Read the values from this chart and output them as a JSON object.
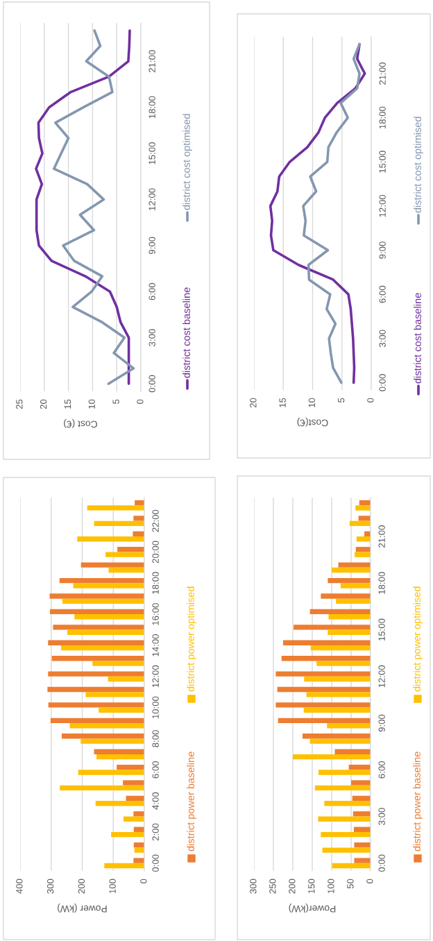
{
  "chart_data": [
    {
      "type": "line",
      "orientation": "horizontal",
      "xlabel": "Cost (€)",
      "xlim": [
        25,
        0
      ],
      "xticks": [
        25,
        20,
        15,
        10,
        5,
        0
      ],
      "grid": "x",
      "legend": "right",
      "marker": "none",
      "categories": [
        null,
        null,
        "21:00",
        null,
        null,
        "18:00",
        null,
        null,
        "15:00",
        null,
        null,
        "12:00",
        null,
        null,
        "9:00",
        null,
        null,
        "6:00",
        null,
        null,
        "3:00",
        null,
        null,
        "0:00"
      ],
      "series": [
        {
          "name": "district cost baseline",
          "color": "#7030a0",
          "values": [
            2.3,
            2.4,
            2.6,
            6.6,
            14.5,
            19,
            21.2,
            21.1,
            20.4,
            21.7,
            20.5,
            21.6,
            21.6,
            21.6,
            21.1,
            18.5,
            11.5,
            6.4,
            5,
            4.2,
            2.5,
            2.5,
            2.5,
            2.5
          ]
        },
        {
          "name": "district cost optimised",
          "color": "#8497b0",
          "values": [
            9.6,
            8.4,
            11.3,
            6.6,
            5.9,
            11.9,
            17.7,
            15,
            16.5,
            18,
            11.1,
            7.7,
            12.6,
            9.7,
            16.1,
            13.8,
            8,
            10.2,
            14.1,
            8,
            3.4,
            5.6,
            1.5,
            6.7
          ]
        }
      ]
    },
    {
      "type": "line",
      "orientation": "horizontal",
      "xlabel": "Cost(€)",
      "xlim": [
        20,
        0
      ],
      "xticks": [
        20,
        15,
        10,
        5,
        0
      ],
      "grid": "x",
      "legend": "right",
      "marker": "none",
      "categories": [
        null,
        null,
        "21:00",
        null,
        null,
        "18:00",
        null,
        null,
        "15:00",
        null,
        null,
        "12:00",
        null,
        null,
        "9:00",
        null,
        null,
        "6:00",
        null,
        null,
        "3:00",
        null,
        null,
        "0:00"
      ],
      "series": [
        {
          "name": "district cost baseline",
          "color": "#7030a0",
          "values": [
            2,
            2.4,
            1.1,
            2.7,
            5.8,
            7.9,
            9,
            10.9,
            13.9,
            15.7,
            16,
            17.2,
            16.9,
            17.1,
            16.7,
            12.4,
            6.5,
            3.9,
            3.5,
            3.3,
            3.1,
            3,
            2.9,
            3
          ]
        },
        {
          "name": "district cost optimised",
          "color": "#8497b0",
          "values": [
            2,
            3,
            2,
            2.4,
            5.2,
            4,
            5.9,
            7.3,
            7.5,
            10.4,
            9.4,
            11.6,
            11.2,
            11.5,
            7.4,
            10.7,
            10.6,
            7,
            7.6,
            6.1,
            7.2,
            6.9,
            6.5,
            5.1
          ]
        }
      ]
    },
    {
      "type": "bar",
      "orientation": "horizontal",
      "xlabel": "Power (kW)",
      "xlim": [
        400,
        0
      ],
      "xticks": [
        400,
        300,
        200,
        100,
        0
      ],
      "grid": "x",
      "legend": "right",
      "categories": [
        null,
        "22:00",
        null,
        "20:00",
        null,
        "18:00",
        null,
        "16:00",
        null,
        "14:00",
        null,
        "12:00",
        null,
        "10:00",
        null,
        "8:00",
        null,
        "6:00",
        null,
        "4:00",
        null,
        "2:00",
        null,
        "0:00"
      ],
      "series": [
        {
          "name": "district power baseline",
          "color": "#ed7d31",
          "values": [
            31,
            35,
            37,
            87,
            204,
            273,
            305,
            304,
            294,
            310,
            298,
            310,
            312,
            309,
            302,
            266,
            162,
            89,
            69,
            59,
            35,
            34,
            34,
            35
          ]
        },
        {
          "name": "district power optimised",
          "color": "#ffc000",
          "values": [
            184,
            162,
            216,
            125,
            115,
            229,
            264,
            225,
            248,
            268,
            167,
            117,
            189,
            147,
            240,
            205,
            154,
            213,
            272,
            157,
            67,
            107,
            32,
            129
          ]
        }
      ]
    },
    {
      "type": "bar",
      "orientation": "horizontal",
      "xlabel": "Power(kW)",
      "xlim": [
        300,
        0
      ],
      "xticks": [
        300,
        250,
        200,
        150,
        100,
        50,
        0
      ],
      "grid": "x",
      "legend": "right",
      "categories": [
        null,
        null,
        "21:00",
        null,
        null,
        "18:00",
        null,
        null,
        "15:00",
        null,
        null,
        "12:00",
        null,
        null,
        "9:00",
        null,
        null,
        "6:00",
        null,
        null,
        "3:00",
        null,
        null,
        "0:00"
      ],
      "series": [
        {
          "name": "district power baseline",
          "color": "#ed7d31",
          "values": [
            29,
            31,
            16,
            38,
            83,
            110,
            128,
            156,
            198,
            225,
            229,
            244,
            240,
            244,
            238,
            175,
            92,
            56,
            50,
            47,
            45,
            43,
            42,
            42
          ]
        },
        {
          "name": "district power optimised",
          "color": "#ffc000",
          "values": [
            39,
            54,
            36,
            41,
            100,
            77,
            89,
            108,
            110,
            154,
            139,
            171,
            165,
            172,
            112,
            156,
            200,
            134,
            143,
            119,
            135,
            128,
            124,
            99
          ]
        }
      ]
    }
  ]
}
